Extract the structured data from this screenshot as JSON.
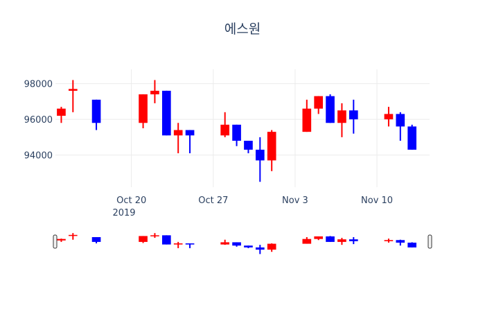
{
  "chart_data": {
    "type": "candlestick",
    "title": "에스원",
    "xlabel": "",
    "ylabel": "",
    "ylim": [
      92200,
      98800
    ],
    "y_ticks": [
      94000,
      96000,
      98000
    ],
    "y_tick_labels": [
      "94000",
      "96000",
      "98000"
    ],
    "x_tick_dates": [
      "2019-10-20",
      "2019-10-27",
      "2019-11-03",
      "2019-11-10"
    ],
    "x_tick_labels": [
      "Oct 20",
      "Oct 27",
      "Nov 3",
      "Nov 10"
    ],
    "x_year_label": "2019",
    "xlim": [
      "2019-10-14",
      "2019-11-14"
    ],
    "grid": true,
    "legend": "none",
    "rangeslider": true,
    "colors": {
      "increasing": "#ff0000",
      "decreasing": "#0000ff"
    },
    "candles": [
      {
        "date": "2019-10-14",
        "open": 96200,
        "high": 96700,
        "low": 95800,
        "close": 96600
      },
      {
        "date": "2019-10-15",
        "open": 97600,
        "high": 98200,
        "low": 96400,
        "close": 97700
      },
      {
        "date": "2019-10-17",
        "open": 97100,
        "high": 97100,
        "low": 95400,
        "close": 95800
      },
      {
        "date": "2019-10-21",
        "open": 95800,
        "high": 97400,
        "low": 95500,
        "close": 97400
      },
      {
        "date": "2019-10-22",
        "open": 97400,
        "high": 98200,
        "low": 96900,
        "close": 97600
      },
      {
        "date": "2019-10-23",
        "open": 97600,
        "high": 97600,
        "low": 95100,
        "close": 95100
      },
      {
        "date": "2019-10-24",
        "open": 95100,
        "high": 95800,
        "low": 94100,
        "close": 95400
      },
      {
        "date": "2019-10-25",
        "open": 95400,
        "high": 95400,
        "low": 94100,
        "close": 95100
      },
      {
        "date": "2019-10-28",
        "open": 95100,
        "high": 96400,
        "low": 95000,
        "close": 95700
      },
      {
        "date": "2019-10-29",
        "open": 95700,
        "high": 95700,
        "low": 94500,
        "close": 94800
      },
      {
        "date": "2019-10-30",
        "open": 94800,
        "high": 94800,
        "low": 94100,
        "close": 94300
      },
      {
        "date": "2019-10-31",
        "open": 94300,
        "high": 95000,
        "low": 92500,
        "close": 93700
      },
      {
        "date": "2019-11-01",
        "open": 93700,
        "high": 95400,
        "low": 93100,
        "close": 95300
      },
      {
        "date": "2019-11-04",
        "open": 95300,
        "high": 97100,
        "low": 95300,
        "close": 96600
      },
      {
        "date": "2019-11-05",
        "open": 96600,
        "high": 97300,
        "low": 96300,
        "close": 97300
      },
      {
        "date": "2019-11-06",
        "open": 97300,
        "high": 97400,
        "low": 95800,
        "close": 95800
      },
      {
        "date": "2019-11-07",
        "open": 95800,
        "high": 96900,
        "low": 95000,
        "close": 96500
      },
      {
        "date": "2019-11-08",
        "open": 96500,
        "high": 97100,
        "low": 95200,
        "close": 96000
      },
      {
        "date": "2019-11-11",
        "open": 96000,
        "high": 96700,
        "low": 95600,
        "close": 96300
      },
      {
        "date": "2019-11-12",
        "open": 96300,
        "high": 96400,
        "low": 94800,
        "close": 95600
      },
      {
        "date": "2019-11-13",
        "open": 95600,
        "high": 95700,
        "low": 94300,
        "close": 94300
      }
    ]
  }
}
